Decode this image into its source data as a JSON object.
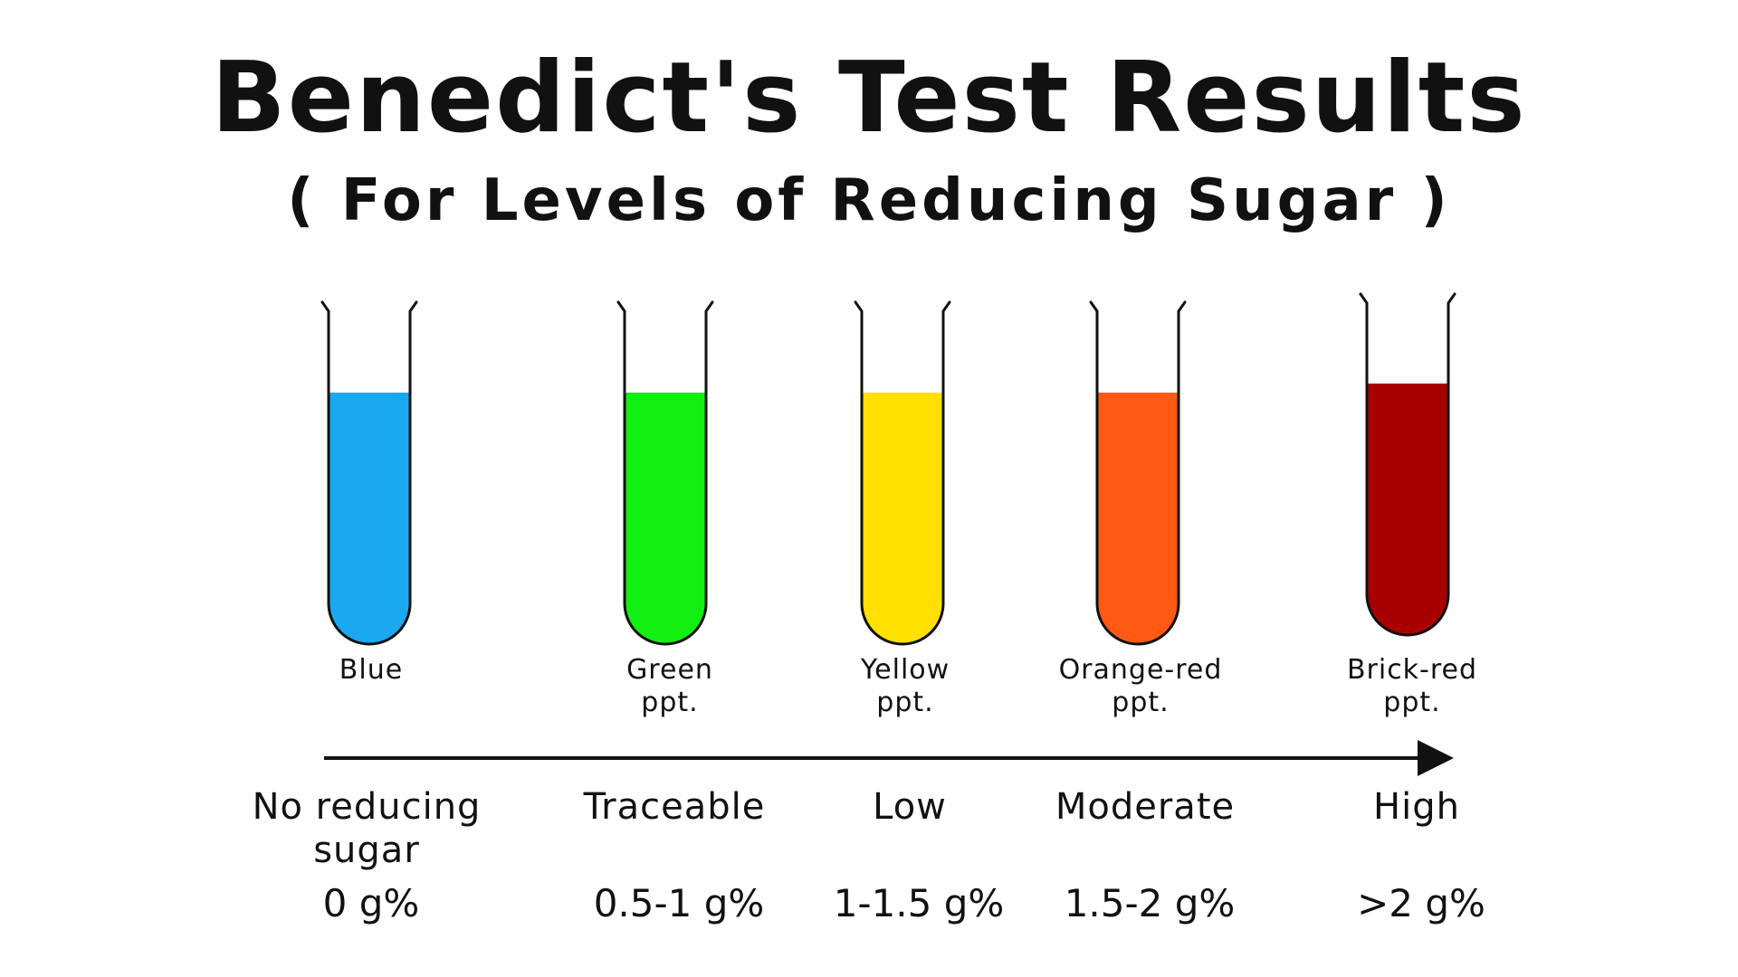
{
  "title": "Benedict's Test Results",
  "subtitle": "( For Levels of Reducing Sugar )",
  "outline_color": "#111111",
  "tubes": [
    {
      "color_label": "Blue",
      "level_label": "No reducing\nsugar",
      "amount": "0 g%",
      "liquid_color": "#1aa8f0"
    },
    {
      "color_label": "Green\nppt.",
      "level_label": "Traceable",
      "amount": "0.5-1 g%",
      "liquid_color": "#11f011"
    },
    {
      "color_label": "Yellow\nppt.",
      "level_label": "Low",
      "amount": "1-1.5 g%",
      "liquid_color": "#ffe000"
    },
    {
      "color_label": "Orange-red\nppt.",
      "level_label": "Moderate",
      "amount": "1.5-2 g%",
      "liquid_color": "#ff5a14"
    },
    {
      "color_label": "Brick-red\nppt.",
      "level_label": "High",
      "amount": ">2 g%",
      "liquid_color": "#a80000"
    }
  ]
}
